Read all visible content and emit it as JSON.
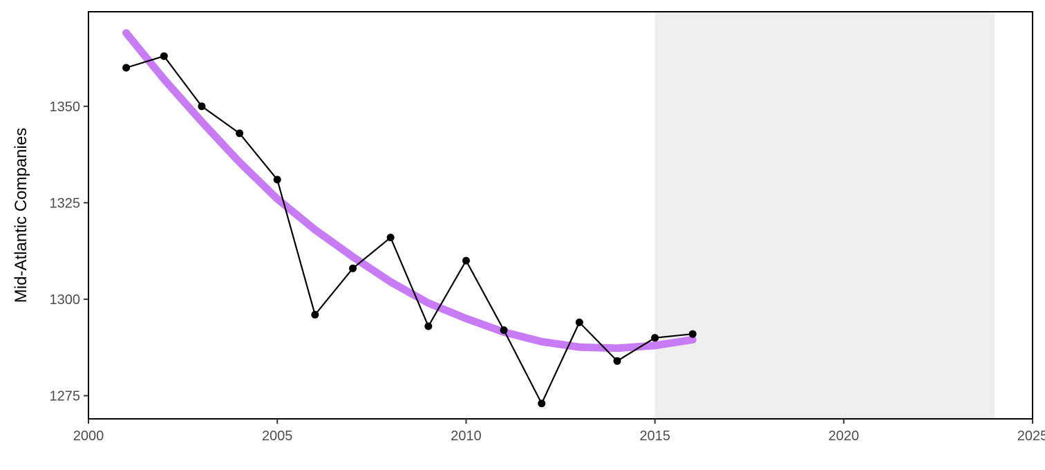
{
  "chart_data": {
    "type": "line",
    "title": "",
    "xlabel": "",
    "ylabel": "Mid-Atlantic Companies",
    "xlim": [
      2000,
      2025
    ],
    "ylim": [
      1269,
      1374.5
    ],
    "x_ticks": [
      2000,
      2005,
      2010,
      2015,
      2020,
      2025
    ],
    "y_ticks": [
      1275,
      1300,
      1325,
      1350
    ],
    "shaded_region": {
      "x_start": 2015,
      "x_end": 2024,
      "color": "#eeeeee"
    },
    "series": [
      {
        "style": "line+points",
        "color": "#000000",
        "x": [
          2001,
          2002,
          2003,
          2004,
          2005,
          2006,
          2007,
          2008,
          2009,
          2010,
          2011,
          2012,
          2013,
          2014,
          2015,
          2016
        ],
        "values": [
          1360,
          1363,
          1350,
          1343,
          1331,
          1296,
          1308,
          1316,
          1293,
          1310,
          1292,
          1273,
          1294,
          1284,
          1290,
          1291
        ]
      },
      {
        "style": "smooth-trend",
        "color": "#c77cf5",
        "x": [
          2001,
          2002,
          2003,
          2004,
          2005,
          2006,
          2007,
          2008,
          2009,
          2010,
          2011,
          2012,
          2013,
          2014,
          2015,
          2016
        ],
        "values": [
          1369,
          1357,
          1346,
          1335.5,
          1326,
          1318,
          1311,
          1304.5,
          1299,
          1295,
          1291.5,
          1289,
          1287.6,
          1287.3,
          1288,
          1289.5
        ]
      }
    ],
    "grid": false,
    "legend": "none"
  }
}
